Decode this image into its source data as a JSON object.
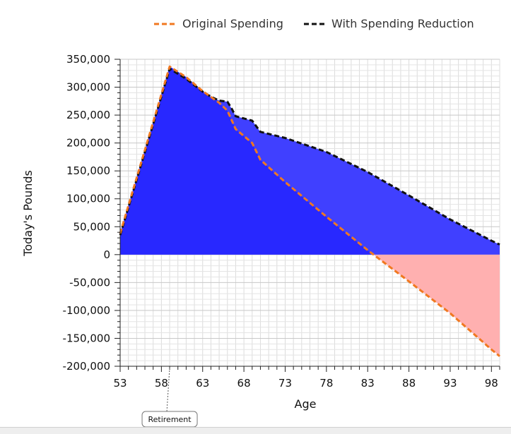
{
  "chart_data": {
    "type": "area",
    "xlabel": "Age",
    "ylabel": "Today's Pounds",
    "xlim": [
      53,
      99
    ],
    "ylim": [
      -200000,
      350000
    ],
    "x_ticks": [
      "53",
      "58",
      "63",
      "68",
      "73",
      "78",
      "83",
      "88",
      "93",
      "98"
    ],
    "y_ticks": [
      "350,000",
      "300,000",
      "250,000",
      "200,000",
      "150,000",
      "100,000",
      "50,000",
      "0",
      "-50,000",
      "-100,000",
      "-150,000",
      "-200,000"
    ],
    "grid": true,
    "legend_position": "top",
    "series": [
      {
        "name": "Original Spending",
        "color": "#f07820",
        "dash": "dashed",
        "points": [
          [
            53,
            38000
          ],
          [
            59,
            337000
          ],
          [
            61,
            318000
          ],
          [
            63,
            293000
          ],
          [
            65,
            272000
          ],
          [
            66,
            258000
          ],
          [
            67,
            225000
          ],
          [
            69,
            200000
          ],
          [
            70,
            170000
          ],
          [
            73,
            130000
          ],
          [
            78,
            68000
          ],
          [
            83,
            8000
          ],
          [
            88,
            -48000
          ],
          [
            93,
            -105000
          ],
          [
            98,
            -170000
          ],
          [
            99,
            -182000
          ]
        ]
      },
      {
        "name": "With Spending Reduction",
        "color": "#111111",
        "dash": "dashed",
        "points": [
          [
            53,
            35000
          ],
          [
            59,
            333000
          ],
          [
            61,
            315000
          ],
          [
            63,
            292000
          ],
          [
            64,
            283000
          ],
          [
            65,
            276000
          ],
          [
            66,
            274000
          ],
          [
            66.5,
            262000
          ],
          [
            67,
            248000
          ],
          [
            69,
            240000
          ],
          [
            70,
            220000
          ],
          [
            73,
            209000
          ],
          [
            78,
            184000
          ],
          [
            83,
            148000
          ],
          [
            88,
            106000
          ],
          [
            93,
            63000
          ],
          [
            98,
            25000
          ],
          [
            99,
            18000
          ]
        ]
      }
    ],
    "areas": [
      {
        "name": "original-positive",
        "color": "#2828ff"
      },
      {
        "name": "reduction-gain",
        "color": "#4040ff"
      },
      {
        "name": "original-negative",
        "color": "#ffb0b0"
      }
    ],
    "annotation": {
      "text": "Retirement",
      "x": 59
    }
  }
}
